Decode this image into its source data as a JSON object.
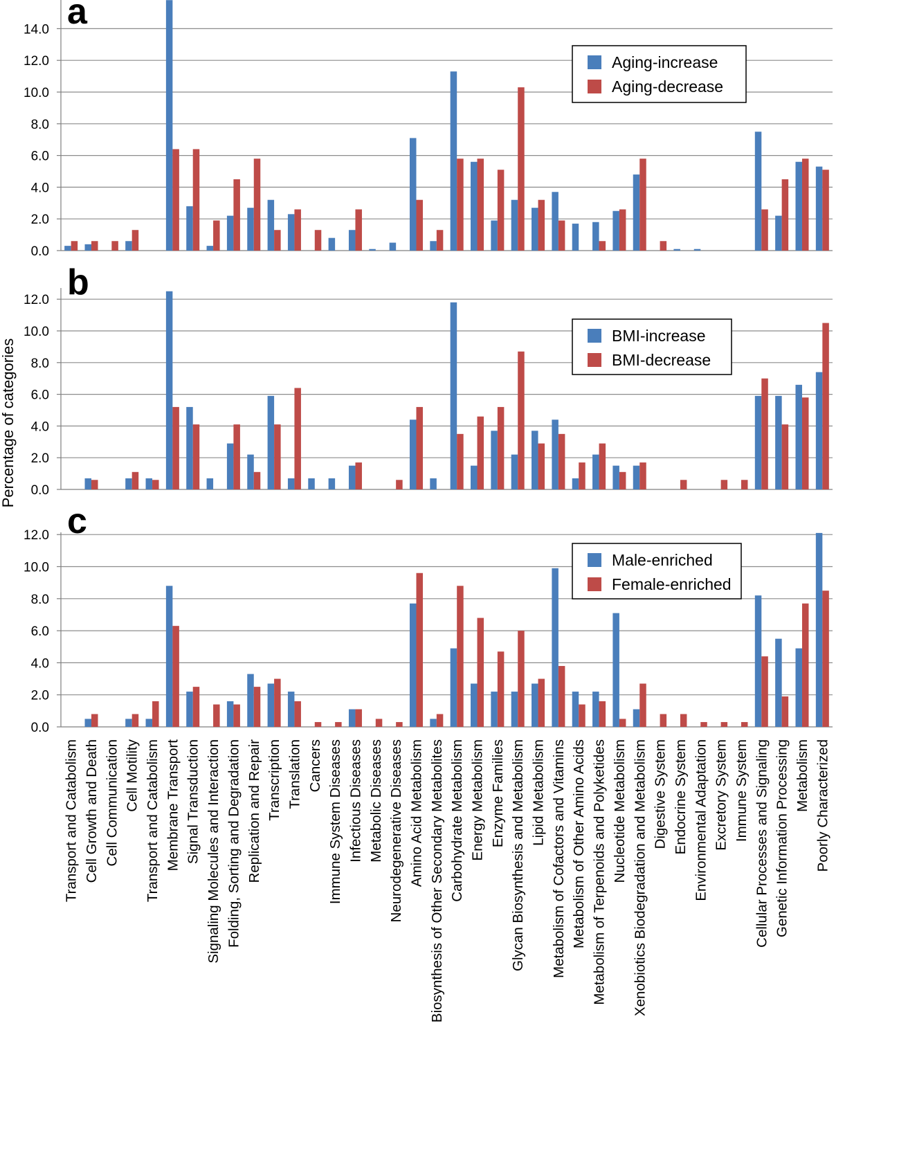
{
  "figure": {
    "ylabel": "Percentage of categories",
    "series_colors": [
      "#4a7ebb",
      "#be4b48"
    ]
  },
  "chart_data": [
    {
      "type": "bar",
      "panel_label": "a",
      "legend_position": "top-right",
      "ylim": [
        0,
        15.8
      ],
      "yticks": [
        0,
        2,
        4,
        6,
        8,
        10,
        12,
        14
      ],
      "ytick_labels": [
        "0.0",
        "2.0",
        "4.0",
        "6.0",
        "8.0",
        "10.0",
        "12.0",
        "14.0"
      ],
      "categories": [
        "Transport and Catabolism",
        "Cell Growth and Death",
        "Cell Communication",
        "Cell Motility",
        "Transport and Catabolism",
        "Membrane Transport",
        "Signal Transduction",
        "Signaling Molecules and Interaction",
        "Folding, Sorting and Degradation",
        "Replication and Repair",
        "Transcription",
        "Translation",
        "Cancers",
        "Immune System Diseases",
        "Infectious Diseases",
        "Metabolic Diseases",
        "Neurodegenerative Diseases",
        "Amino Acid Metabolism",
        "Biosynthesis of Other Secondary Metabolites",
        "Carbohydrate Metabolism",
        "Energy Metabolism",
        "Enzyme Families",
        "Glycan Biosynthesis and Metabolism",
        "Lipid Metabolism",
        "Metabolism of Cofactors and Vitamins",
        "Metabolism of Other Amino Acids",
        "Metabolism of Terpenoids and Polyketides",
        "Nucleotide Metabolism",
        "Xenobiotics Biodegradation and Metabolism",
        "Digestive System",
        "Endocrine System",
        "Environmental Adaptation",
        "Excretory System",
        "Immune System",
        "Cellular Processes and Signaling",
        "Genetic Information Processing",
        "Metabolism",
        "Poorly Characterized"
      ],
      "series": [
        {
          "name": "Aging-increase",
          "values": [
            0.3,
            0.4,
            0,
            0.6,
            0,
            15.8,
            2.8,
            0.3,
            2.2,
            2.7,
            3.2,
            2.3,
            0,
            0.8,
            1.3,
            0.1,
            0.5,
            7.1,
            0.6,
            11.3,
            5.6,
            1.9,
            3.2,
            2.7,
            3.7,
            1.7,
            1.8,
            2.5,
            4.8,
            0,
            0.1,
            0.1,
            0,
            0,
            7.5,
            2.2,
            5.6,
            5.3
          ]
        },
        {
          "name": "Aging-decrease",
          "values": [
            0.6,
            0.6,
            0.6,
            1.3,
            0,
            6.4,
            6.4,
            1.9,
            4.5,
            5.8,
            1.3,
            2.6,
            1.3,
            0,
            2.6,
            0,
            0,
            3.2,
            1.3,
            5.8,
            5.8,
            5.1,
            10.3,
            3.2,
            1.9,
            0,
            0.6,
            2.6,
            5.8,
            0.6,
            0,
            0,
            0,
            0,
            2.6,
            4.5,
            5.8,
            5.1
          ]
        }
      ]
    },
    {
      "type": "bar",
      "panel_label": "b",
      "legend_position": "top-right",
      "ylim": [
        0,
        12.6
      ],
      "yticks": [
        0,
        2,
        4,
        6,
        8,
        10,
        12
      ],
      "ytick_labels": [
        "0.0",
        "2.0",
        "4.0",
        "6.0",
        "8.0",
        "10.0",
        "12.0"
      ],
      "series": [
        {
          "name": "BMI-increase",
          "values": [
            0,
            0.7,
            0,
            0.7,
            0.7,
            12.5,
            5.2,
            0.7,
            2.9,
            2.2,
            5.9,
            0.7,
            0.7,
            0.7,
            1.5,
            0,
            0,
            4.4,
            0.7,
            11.8,
            1.5,
            3.7,
            2.2,
            3.7,
            4.4,
            0.7,
            2.2,
            1.5,
            1.5,
            0,
            0,
            0,
            0,
            0,
            5.9,
            5.9,
            6.6,
            7.4
          ]
        },
        {
          "name": "BMI-decrease",
          "values": [
            0,
            0.6,
            0,
            1.1,
            0.6,
            5.2,
            4.1,
            0,
            4.1,
            1.1,
            4.1,
            6.4,
            0,
            0,
            1.7,
            0,
            0.6,
            5.2,
            0,
            3.5,
            4.6,
            5.2,
            8.7,
            2.9,
            3.5,
            1.7,
            2.9,
            1.1,
            1.7,
            0,
            0.6,
            0,
            0.6,
            0.6,
            7.0,
            4.1,
            5.8,
            10.5
          ]
        }
      ]
    },
    {
      "type": "bar",
      "panel_label": "c",
      "legend_position": "top-right",
      "ylim": [
        0,
        12.1
      ],
      "yticks": [
        0,
        2,
        4,
        6,
        8,
        10,
        12
      ],
      "ytick_labels": [
        "0.0",
        "2.0",
        "4.0",
        "6.0",
        "8.0",
        "10.0",
        "12.0"
      ],
      "series": [
        {
          "name": "Male-enriched",
          "values": [
            0,
            0.5,
            0,
            0.5,
            0.5,
            8.8,
            2.2,
            0,
            1.6,
            3.3,
            2.7,
            2.2,
            0,
            0,
            1.1,
            0,
            0,
            7.7,
            0.5,
            4.9,
            2.7,
            2.2,
            2.2,
            2.7,
            9.9,
            2.2,
            2.2,
            7.1,
            1.1,
            0,
            0,
            0,
            0,
            0,
            8.2,
            5.5,
            4.9,
            12.1
          ]
        },
        {
          "name": "Female-enriched",
          "values": [
            0,
            0.8,
            0,
            0.8,
            1.6,
            6.3,
            2.5,
            1.4,
            1.4,
            2.5,
            3.0,
            1.6,
            0.3,
            0.3,
            1.1,
            0.5,
            0.3,
            9.6,
            0.8,
            8.8,
            6.8,
            4.7,
            6.0,
            3.0,
            3.8,
            1.4,
            1.6,
            0.5,
            2.7,
            0.8,
            0.8,
            0.3,
            0.3,
            0.3,
            4.4,
            1.9,
            7.7,
            8.5
          ]
        }
      ]
    }
  ]
}
